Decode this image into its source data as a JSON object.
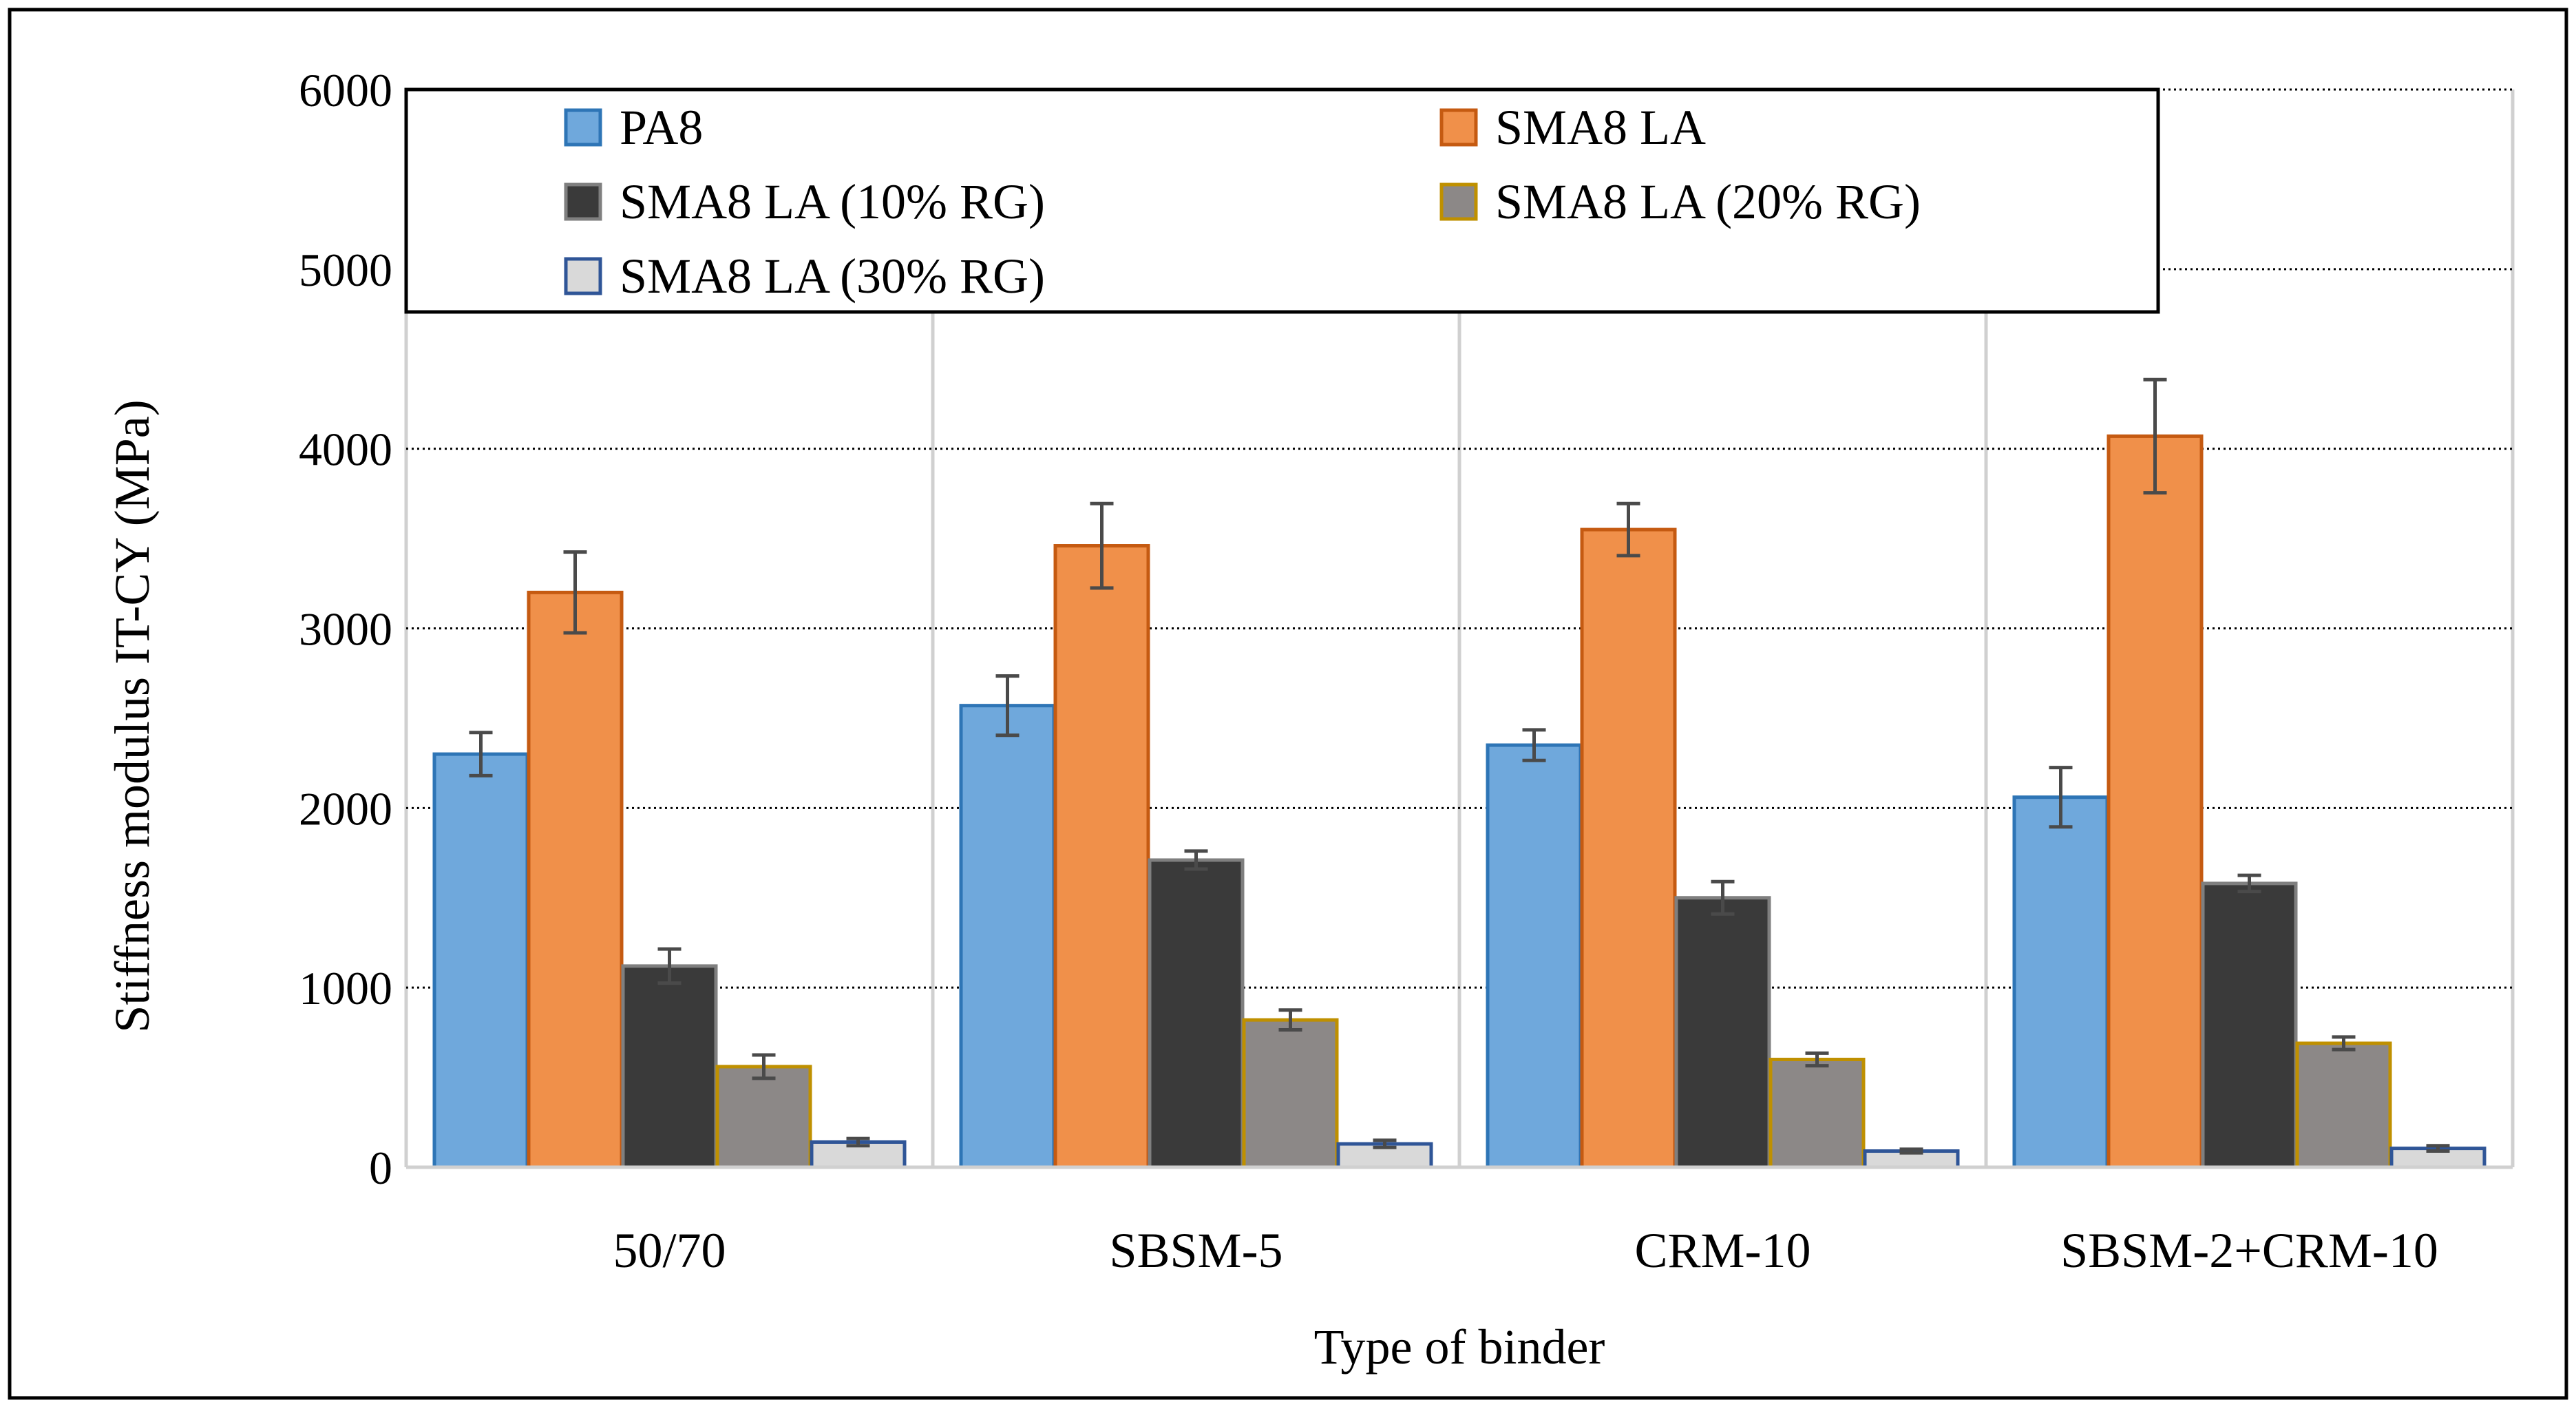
{
  "chart_data": {
    "type": "bar",
    "title": "",
    "xlabel": "Type of binder",
    "ylabel": "Stiffness modulus IT-CY (MPa)",
    "ylim": [
      0,
      6000
    ],
    "yticks": [
      0,
      1000,
      2000,
      3000,
      4000,
      5000,
      6000
    ],
    "categories": [
      "50/70",
      "SBSM-5",
      "CRM-10",
      "SBSM-2+CRM-10"
    ],
    "grid": "horizontal dotted major gridlines",
    "legend_position": "top, inside plot",
    "series": [
      {
        "name": "PA8",
        "values": [
          2300,
          2570,
          2350,
          2060
        ],
        "error": [
          120,
          165,
          85,
          165
        ],
        "fill": "#6FA8DC",
        "stroke": "#2E75B6"
      },
      {
        "name": "SMA8 LA",
        "values": [
          3200,
          3460,
          3550,
          4070
        ],
        "error": [
          225,
          235,
          145,
          315
        ],
        "fill": "#F0904A",
        "stroke": "#C55A11"
      },
      {
        "name": "SMA8 LA (10% RG)",
        "values": [
          1120,
          1710,
          1500,
          1580
        ],
        "error": [
          95,
          50,
          90,
          45
        ],
        "fill": "#3A3A3A",
        "stroke": "#7F7F7F"
      },
      {
        "name": "SMA8 LA (20% RG)",
        "values": [
          560,
          820,
          600,
          690
        ],
        "error": [
          65,
          55,
          35,
          35
        ],
        "fill": "#8C8887",
        "stroke": "#BF9000"
      },
      {
        "name": "SMA8 LA (30% RG)",
        "values": [
          140,
          130,
          90,
          105
        ],
        "error": [
          20,
          20,
          10,
          15
        ],
        "fill": "#D9D9D9",
        "stroke": "#2F5597"
      }
    ]
  }
}
